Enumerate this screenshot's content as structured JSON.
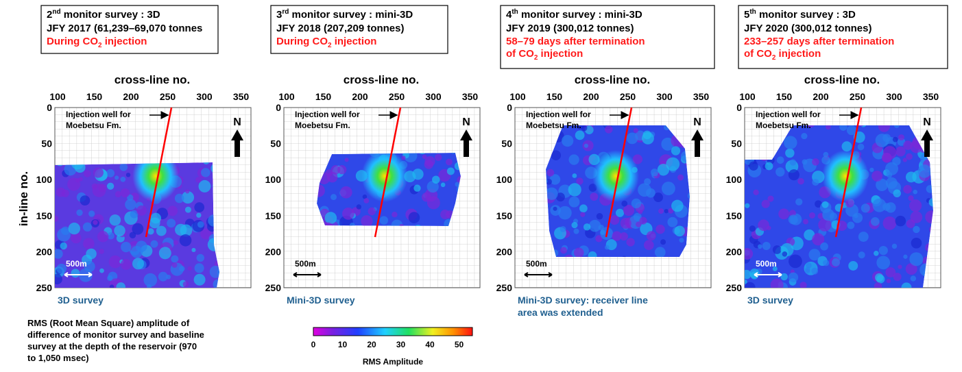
{
  "y_axis_label": "in-line no.",
  "panels": [
    {
      "title": {
        "num": "2",
        "sup": "nd",
        "rest": " monitor survey : 3D"
      },
      "line2": "JFY 2017 (61,239–69,070 tonnes",
      "line3": [
        [
          "During CO",
          "2",
          " injection"
        ]
      ],
      "x_axis_label": "cross-line no.",
      "xticks": [
        100,
        150,
        200,
        250,
        300,
        350
      ],
      "yticks": [
        0,
        50,
        100,
        150,
        200,
        250
      ],
      "well_label": [
        "Injection  well for",
        "Moebetsu  Fm."
      ],
      "north": "N",
      "scale": "500m",
      "caption": [
        "3D survey"
      ]
    },
    {
      "title": {
        "num": "3",
        "sup": "rd",
        "rest": " monitor survey : mini-3D"
      },
      "line2": "JFY 2018  (207,209 tonnes)",
      "line3": [
        [
          "During CO",
          "2",
          " injection"
        ]
      ],
      "x_axis_label": "cross-line no.",
      "xticks": [
        100,
        150,
        200,
        250,
        300,
        350
      ],
      "yticks": [
        0,
        50,
        100,
        150,
        200,
        250
      ],
      "well_label": [
        "Injection  well for",
        "Moebetsu  Fm."
      ],
      "north": "N",
      "scale": "500m",
      "caption": [
        "Mini-3D survey"
      ]
    },
    {
      "title": {
        "num": "4",
        "sup": "th",
        "rest": " monitor survey : mini-3D"
      },
      "line2": "JFY 2019 (300,012 tonnes)",
      "line3": [
        [
          "58–79 days after termination"
        ],
        [
          "of CO",
          "2",
          " injection"
        ]
      ],
      "x_axis_label": "cross-line no.",
      "xticks": [
        100,
        150,
        200,
        250,
        300,
        350
      ],
      "yticks": [
        0,
        50,
        100,
        150,
        200,
        250
      ],
      "well_label": [
        "Injection  well for",
        "Moebetsu  Fm."
      ],
      "north": "N",
      "scale": "500m",
      "caption": [
        "Mini-3D survey: receiver line",
        "area was extended"
      ]
    },
    {
      "title": {
        "num": "5",
        "sup": "th",
        "rest": " monitor survey : 3D"
      },
      "line2": "JFY 2020  (300,012 tonnes)",
      "line3": [
        [
          "233–257 days after termination"
        ],
        [
          "of CO",
          "2",
          " injection"
        ]
      ],
      "x_axis_label": "cross-line no.",
      "xticks": [
        100,
        150,
        200,
        250,
        300,
        350
      ],
      "yticks": [
        0,
        50,
        100,
        150,
        200,
        250
      ],
      "well_label": [
        "Injection  well for",
        "Moebetsu  Fm."
      ],
      "north": "N",
      "scale": "500m",
      "caption": [
        "3D survey"
      ]
    }
  ],
  "note": [
    "RMS (Root Mean Square) amplitude of",
    "difference of monitor survey and baseline",
    "survey at the depth of the reservoir (970",
    "to 1,050 msec)"
  ],
  "colorbar": {
    "ticks": [
      0,
      10,
      20,
      30,
      40,
      50
    ],
    "label": "RMS Amplitude"
  }
}
